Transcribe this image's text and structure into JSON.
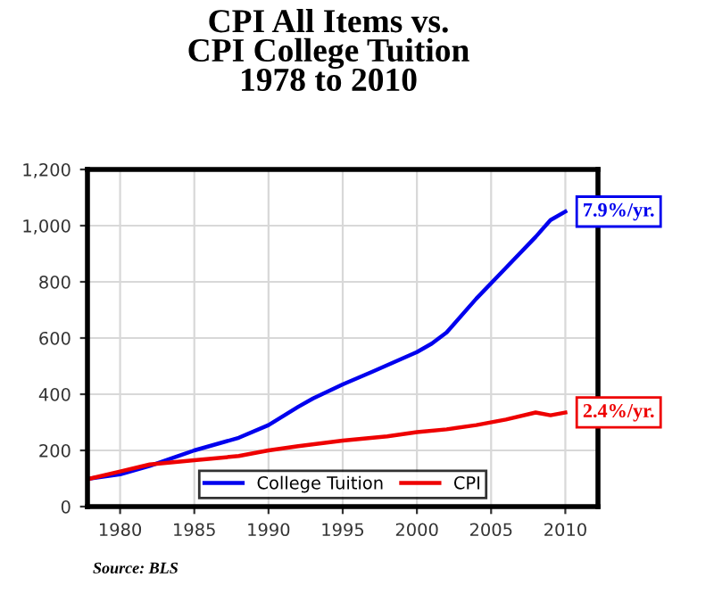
{
  "chart_data": {
    "type": "line",
    "title": "CPI All Items vs.\nCPI College Tuition\n1978 to 2010",
    "xlim": [
      1977.8,
      2012.2
    ],
    "xticks": [
      1980,
      1985,
      1990,
      1995,
      2000,
      2005,
      2010
    ],
    "ylim": [
      0,
      1200
    ],
    "yticks": [
      0,
      200,
      400,
      600,
      800,
      {
        "value": 1000,
        "label": "1,000"
      },
      {
        "value": 1200,
        "label": "1,200"
      }
    ],
    "grid": true,
    "legend": "bottom",
    "series": [
      {
        "name": "College Tuition",
        "color": "#0000ee",
        "x": [
          1978,
          1980,
          1982,
          1985,
          1988,
          1990,
          1992,
          1993,
          1995,
          1997,
          2000,
          2001,
          2002,
          2004,
          2006,
          2008,
          2009,
          2010
        ],
        "values": [
          100,
          115,
          145,
          200,
          245,
          290,
          355,
          385,
          435,
          480,
          550,
          580,
          620,
          740,
          850,
          960,
          1020,
          1050
        ]
      },
      {
        "name": "CPI",
        "color": "#ee0000",
        "x": [
          1978,
          1980,
          1982,
          1985,
          1988,
          1990,
          1992,
          1995,
          1998,
          2000,
          2002,
          2004,
          2006,
          2008,
          2009,
          2010
        ],
        "values": [
          100,
          125,
          150,
          165,
          180,
          200,
          215,
          235,
          250,
          265,
          275,
          290,
          310,
          335,
          325,
          335
        ]
      }
    ],
    "annotations": [
      {
        "text": "7.9%/yr.",
        "x": 2010,
        "y": 1050
      },
      {
        "text": "2.4%/yr.",
        "x": 2010,
        "y": 335
      },
      "Source: BLS"
    ]
  }
}
